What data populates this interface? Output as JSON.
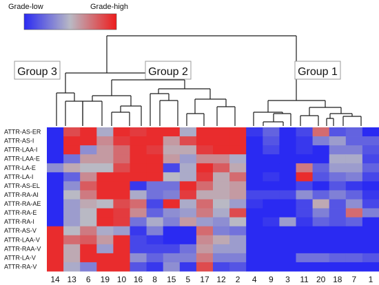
{
  "chart_data": {
    "type": "heatmap",
    "legend": {
      "low_label": "Grade-low",
      "high_label": "Grade-high",
      "colors": [
        "#2a2af2",
        "#b9b9c4",
        "#ee1c1c"
      ]
    },
    "groups": [
      "Group 3",
      "Group 2",
      "Group 1"
    ],
    "columns": [
      "14",
      "13",
      "6",
      "19",
      "10",
      "16",
      "8",
      "15",
      "5",
      "17",
      "12",
      "2",
      "4",
      "9",
      "3",
      "11",
      "20",
      "18",
      "7",
      "1"
    ],
    "rows": [
      "ATTR-AS-ER",
      "ATTR-AS-I",
      "ATTR-LAA-I",
      "ATTR-LAA-E",
      "ATTR-LA-E",
      "ATTR-LA-I",
      "ATTR-AS-EL",
      "ATTR-RA-AI",
      "ATTR-RA-AE",
      "ATTR-RA-E",
      "ATTR-RA-I",
      "ATTR-AS-V",
      "ATTR-LAA-V",
      "ATTR-RAA-V",
      "ATTR-LA-V",
      "ATTR-RA-V"
    ],
    "values": [
      [
        0.0,
        0.85,
        0.95,
        0.45,
        0.95,
        0.9,
        0.95,
        0.95,
        0.45,
        0.95,
        0.95,
        0.95,
        0.05,
        0.2,
        0.0,
        0.1,
        0.75,
        0.15,
        0.2,
        0.0
      ],
      [
        0.0,
        0.95,
        0.95,
        0.65,
        0.9,
        0.95,
        0.95,
        0.6,
        0.85,
        0.95,
        0.95,
        0.95,
        0.0,
        0.15,
        0.0,
        0.05,
        0.3,
        0.4,
        0.2,
        0.2
      ],
      [
        0.0,
        0.95,
        0.35,
        0.6,
        0.75,
        0.95,
        0.9,
        0.55,
        0.55,
        0.9,
        0.95,
        0.95,
        0.0,
        0.1,
        0.0,
        0.05,
        0.0,
        0.3,
        0.3,
        0.15
      ],
      [
        0.0,
        0.25,
        0.6,
        0.6,
        0.75,
        0.95,
        0.95,
        0.6,
        0.4,
        0.65,
        0.65,
        0.45,
        0.0,
        0.0,
        0.0,
        0.0,
        0.0,
        0.45,
        0.45,
        0.1
      ],
      [
        0.35,
        0.55,
        0.5,
        0.5,
        0.85,
        0.95,
        0.95,
        0.1,
        0.45,
        0.95,
        0.8,
        0.55,
        0.0,
        0.0,
        0.0,
        0.7,
        0.2,
        0.4,
        0.4,
        0.2
      ],
      [
        0.0,
        0.2,
        0.65,
        0.95,
        0.95,
        0.95,
        0.95,
        0.5,
        0.45,
        0.9,
        0.55,
        0.75,
        0.0,
        0.05,
        0.0,
        0.95,
        0.15,
        0.25,
        0.3,
        0.1
      ],
      [
        0.0,
        0.35,
        0.8,
        0.95,
        0.95,
        0.05,
        0.25,
        0.25,
        0.95,
        0.75,
        0.55,
        0.6,
        0.0,
        0.0,
        0.0,
        0.1,
        0.0,
        0.15,
        0.05,
        0.0
      ],
      [
        0.0,
        0.5,
        0.7,
        0.95,
        0.95,
        0.45,
        0.25,
        0.3,
        0.9,
        0.55,
        0.55,
        0.6,
        0.1,
        0.1,
        0.1,
        0.35,
        0.2,
        0.3,
        0.2,
        0.05
      ],
      [
        0.0,
        0.4,
        0.55,
        0.5,
        0.85,
        0.75,
        0.1,
        0.95,
        0.45,
        0.75,
        0.5,
        0.4,
        0.05,
        0.0,
        0.0,
        0.1,
        0.55,
        0.15,
        0.35,
        0.1
      ],
      [
        0.0,
        0.4,
        0.5,
        0.95,
        0.9,
        0.65,
        0.2,
        0.35,
        0.4,
        0.7,
        0.45,
        0.85,
        0.0,
        0.0,
        0.0,
        0.1,
        0.3,
        0.15,
        0.75,
        0.3
      ],
      [
        0.0,
        0.4,
        0.5,
        0.95,
        0.9,
        0.25,
        0.45,
        0.3,
        0.6,
        0.4,
        0.35,
        0.5,
        0.0,
        0.05,
        0.4,
        0.05,
        0.2,
        0.15,
        0.2,
        0.0
      ],
      [
        0.95,
        0.5,
        0.7,
        0.45,
        0.4,
        0.05,
        0.3,
        0.0,
        0.0,
        0.75,
        0.3,
        0.25,
        0.0,
        0.0,
        0.0,
        0.0,
        0.0,
        0.0,
        0.0,
        0.0
      ],
      [
        0.95,
        0.75,
        0.8,
        0.6,
        0.95,
        0.1,
        0.05,
        0.0,
        0.0,
        0.65,
        0.55,
        0.4,
        0.0,
        0.0,
        0.0,
        0.0,
        0.0,
        0.0,
        0.0,
        0.0
      ],
      [
        0.95,
        0.55,
        0.95,
        0.4,
        0.95,
        0.1,
        0.1,
        0.1,
        0.25,
        0.6,
        0.4,
        0.4,
        0.0,
        0.0,
        0.0,
        0.0,
        0.0,
        0.0,
        0.0,
        0.0
      ],
      [
        0.95,
        0.55,
        0.95,
        0.95,
        0.95,
        0.35,
        0.2,
        0.3,
        0.3,
        0.7,
        0.3,
        0.3,
        0.0,
        0.0,
        0.0,
        0.25,
        0.25,
        0.2,
        0.2,
        0.15
      ],
      [
        0.95,
        0.45,
        0.3,
        0.95,
        0.95,
        0.15,
        0.05,
        0.35,
        0.05,
        0.85,
        0.1,
        0.15,
        0.0,
        0.0,
        0.0,
        0.0,
        0.0,
        0.0,
        0.0,
        0.0
      ]
    ]
  }
}
